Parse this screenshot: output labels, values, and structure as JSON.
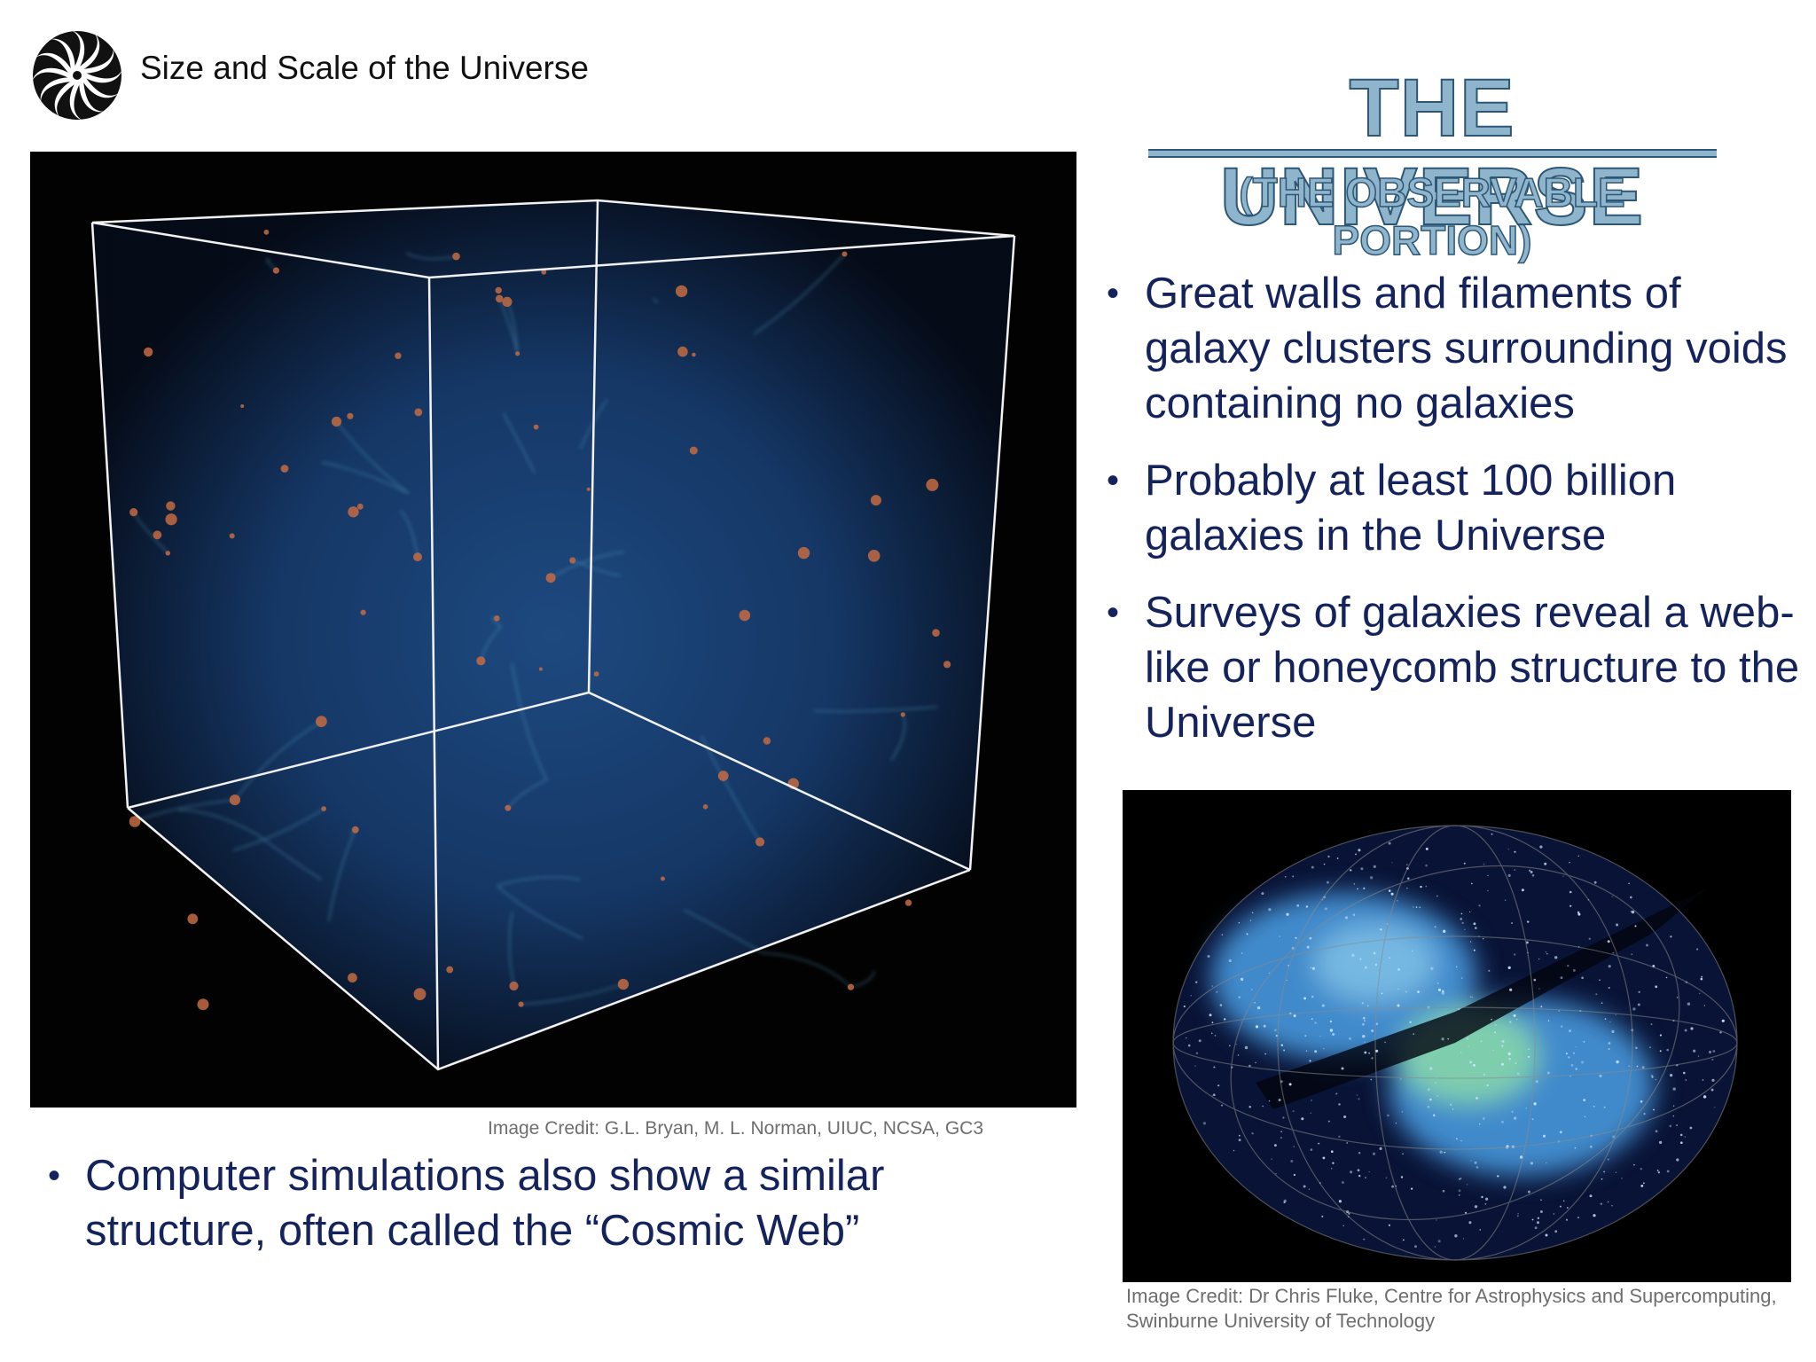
{
  "header": {
    "title": "Size and Scale of the Universe",
    "logo_icon": "swirl-logo-icon"
  },
  "slide": {
    "title": "THE UNIVERSE",
    "subtitle": "(THE OBSERVABLE PORTION)",
    "title_color": "#8fb5cd",
    "title_outline_color": "#2d5775",
    "body_text_color": "#14235c"
  },
  "bullets": [
    "Great walls and filaments of galaxy clusters surrounding voids containing no galaxies",
    "Probably at least 100 billion galaxies in the Universe",
    "Surveys of galaxies reveal a web-like or honeycomb structure to the Universe"
  ],
  "bottom_bullet": "Computer simulations also show a similar structure, often called the “Cosmic Web”",
  "images": {
    "cosmic_web_credit": "Image Credit: G.L. Bryan, M. L. Norman, UIUC, NCSA, GC3",
    "galaxy_survey_credit": "Image Credit: Dr Chris Fluke, Centre for Astrophysics and Supercomputing, Swinburne University of Technology"
  }
}
